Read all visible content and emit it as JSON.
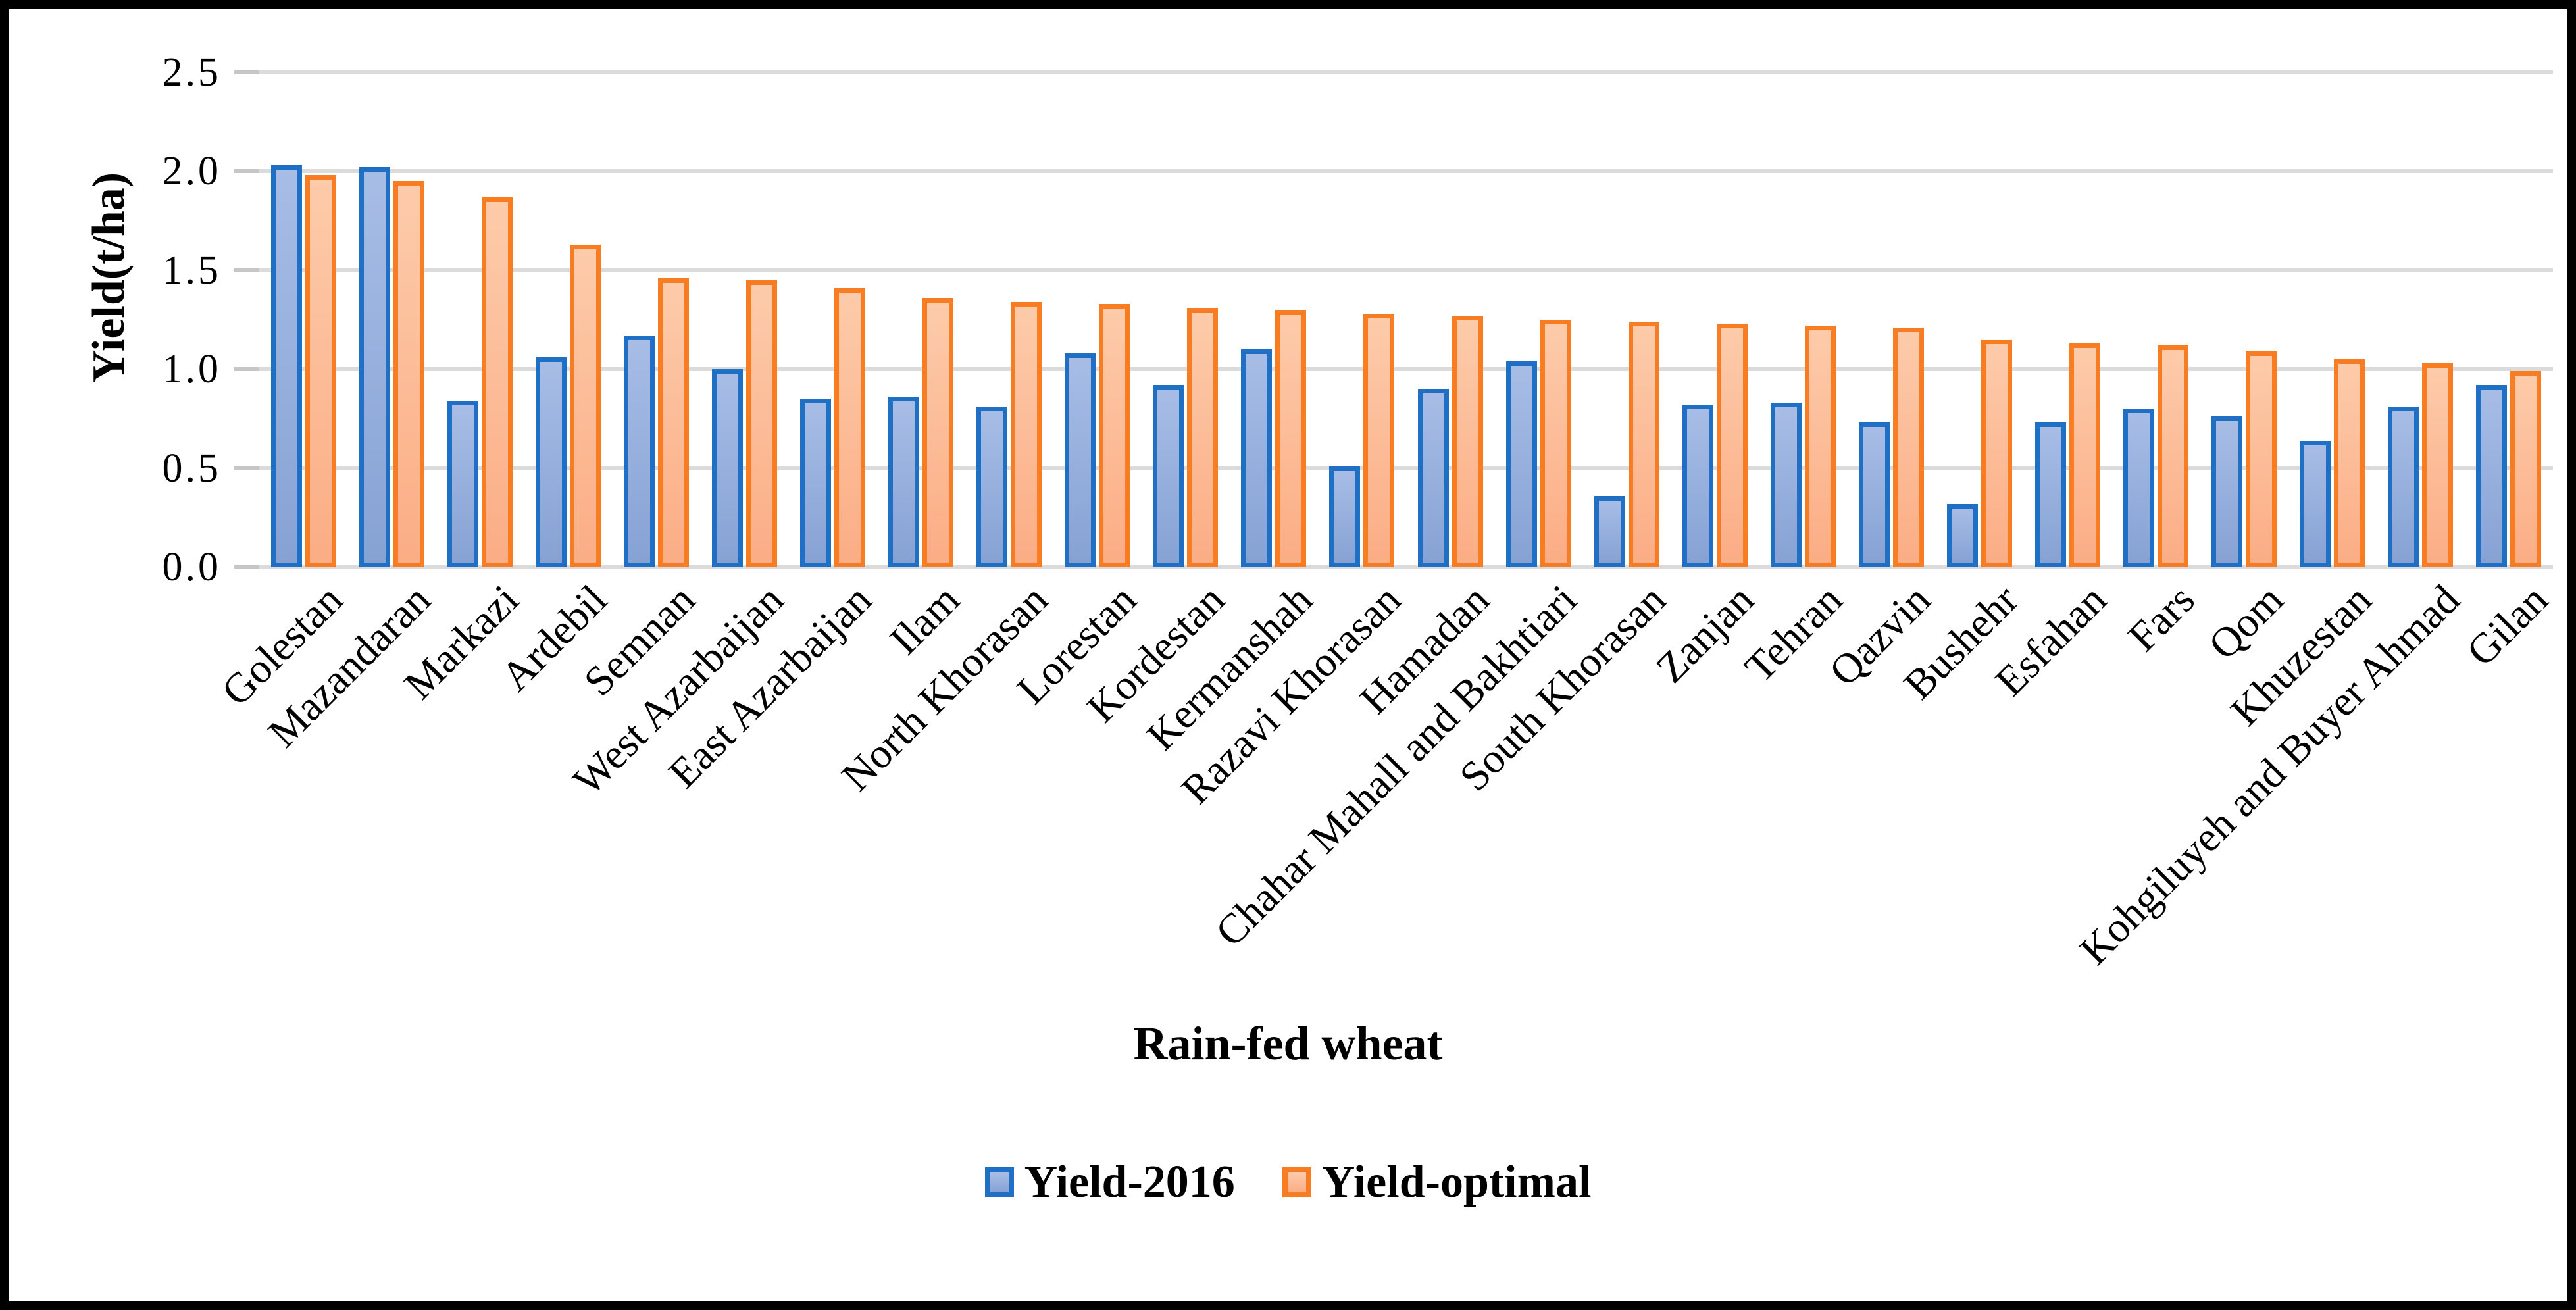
{
  "chart_data": {
    "type": "bar",
    "title": "",
    "xlabel": "Rain-fed wheat",
    "ylabel": "Yield(t/ha)",
    "ylim": [
      0.0,
      2.5
    ],
    "ytick_step": 0.5,
    "yticks": [
      "0.0",
      "0.5",
      "1.0",
      "1.5",
      "2.0",
      "2.5"
    ],
    "grid": true,
    "legend_position": "bottom-center",
    "categories": [
      "Golestan",
      "Mazandaran",
      "Markazi",
      "Ardebil",
      "Semnan",
      "West Azarbaijan",
      "East Azarbaijan",
      "Ilam",
      "North Khorasan",
      "Lorestan",
      "Kordestan",
      "Kermanshah",
      "Razavi Khorasan",
      "Hamadan",
      "Chahar Mahall and Bakhtiari",
      "South Khorasan",
      "Zanjan",
      "Tehran",
      "Qazvin",
      "Bushehr",
      "Esfahan",
      "Fars",
      "Qom",
      "Khuzestan",
      "Kohgiluyeh and Buyer Ahmad",
      "Gilan"
    ],
    "series": [
      {
        "name": "Yield-2016",
        "border_color": "#1F6FC4",
        "fill_top": "#A7BDE6",
        "fill_bottom": "#86A2D4",
        "values": [
          2.03,
          2.02,
          0.84,
          1.06,
          1.17,
          1.0,
          0.85,
          0.86,
          0.81,
          1.08,
          0.92,
          1.1,
          0.51,
          0.9,
          1.04,
          0.36,
          0.82,
          0.83,
          0.73,
          0.32,
          0.73,
          0.8,
          0.76,
          0.64,
          0.81,
          0.92
        ]
      },
      {
        "name": "Yield-optimal",
        "border_color": "#F87C22",
        "fill_top": "#FDCBAA",
        "fill_bottom": "#FBAD85",
        "values": [
          1.98,
          1.95,
          1.87,
          1.63,
          1.46,
          1.45,
          1.41,
          1.36,
          1.34,
          1.33,
          1.31,
          1.3,
          1.28,
          1.27,
          1.25,
          1.24,
          1.23,
          1.22,
          1.21,
          1.15,
          1.13,
          1.12,
          1.09,
          1.05,
          1.03,
          0.99
        ]
      }
    ]
  },
  "colors": {
    "gridline": "#DBDBDB",
    "tick": "#C6C6C6",
    "frame": "#000000",
    "background": "#FFFFFF",
    "text": "#000000"
  }
}
